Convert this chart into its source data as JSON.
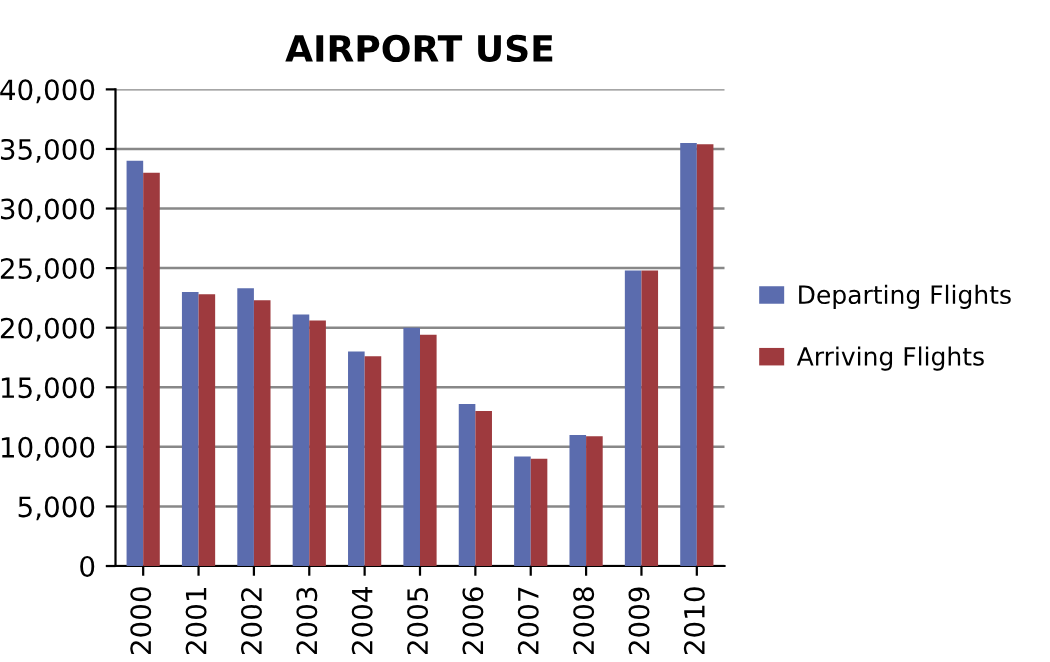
{
  "chart_data": {
    "type": "bar",
    "title": "AIRPORT USE",
    "categories": [
      "2000",
      "2001",
      "2002",
      "2003",
      "2004",
      "2005",
      "2006",
      "2007",
      "2008",
      "2009",
      "2010"
    ],
    "series": [
      {
        "name": "Departing Flights",
        "color": "#5b6cae",
        "values": [
          34000,
          23000,
          23300,
          21100,
          18000,
          20000,
          13600,
          9200,
          11000,
          24800,
          35500
        ]
      },
      {
        "name": "Arriving Flights",
        "color": "#9e3a3e",
        "values": [
          33000,
          22800,
          22300,
          20600,
          17600,
          19400,
          13000,
          9000,
          10900,
          24800,
          35400
        ]
      }
    ],
    "ylim": [
      0,
      40000
    ],
    "yticks": [
      {
        "value": 0,
        "label": "0"
      },
      {
        "value": 5000,
        "label": "5,000"
      },
      {
        "value": 10000,
        "label": "10,000"
      },
      {
        "value": 15000,
        "label": "15,000"
      },
      {
        "value": 20000,
        "label": "20,000"
      },
      {
        "value": 25000,
        "label": "25,000"
      },
      {
        "value": 30000,
        "label": "30,000"
      },
      {
        "value": 35000,
        "label": "35,000"
      },
      {
        "value": 40000,
        "label": "40,000"
      }
    ],
    "grid": "y",
    "legend": "right"
  }
}
